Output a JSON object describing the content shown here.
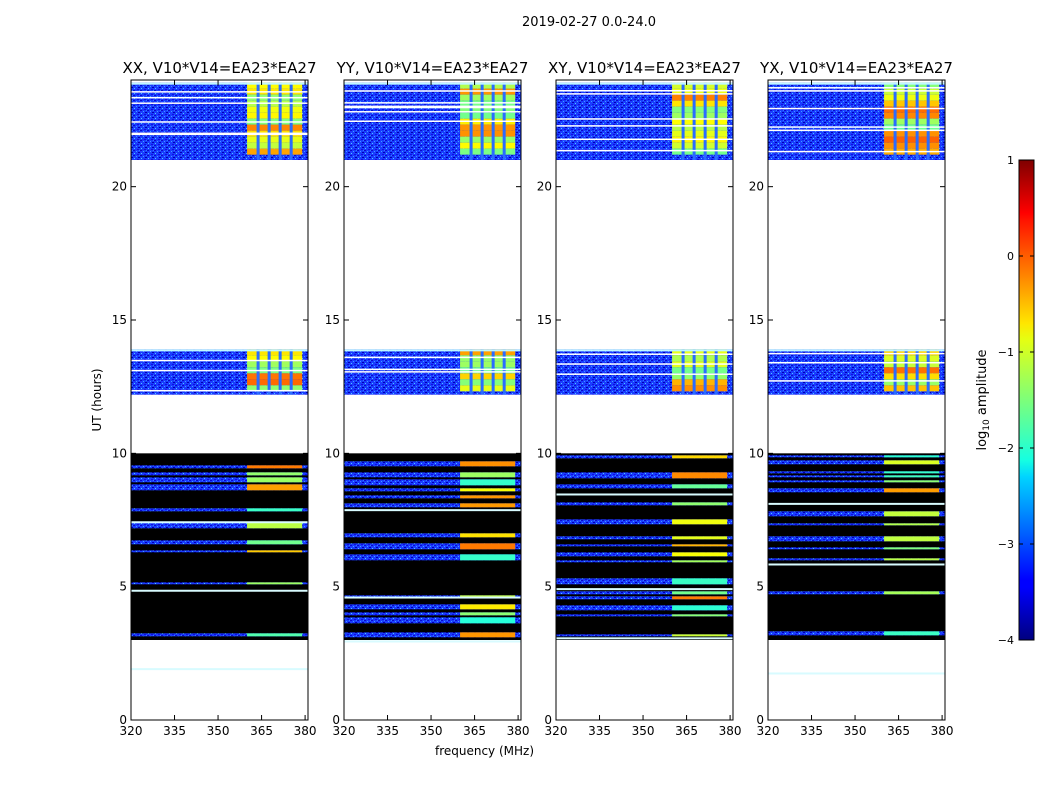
{
  "figure_title": "2019-02-27 0.0-24.0",
  "colormap": "jet",
  "colorbar": {
    "label_prefix": "log",
    "label_subscript": "10",
    "label_suffix": " amplitude",
    "min": -4,
    "max": 1,
    "ticks": [
      -4,
      -3,
      -2,
      -1,
      0,
      1
    ],
    "tick_labels": [
      "−4",
      "−3",
      "−2",
      "−1",
      "0",
      "1"
    ]
  },
  "chart_data": [
    {
      "type": "heatmap",
      "title": "XX, V10*V14=EA23*EA27",
      "ylabel": "UT (hours)",
      "xlabel": "",
      "xlim": [
        320,
        381
      ],
      "ylim": [
        0,
        24
      ],
      "xticks": [
        320,
        335,
        350,
        365,
        380
      ],
      "yticks": [
        0,
        5,
        10,
        15,
        20
      ],
      "time_blocks": [
        {
          "start": 21.0,
          "end": 23.9,
          "type": "data"
        },
        {
          "start": 12.2,
          "end": 13.9,
          "type": "data"
        },
        {
          "start": 3.0,
          "end": 10.0,
          "type": "flagged_mixed"
        }
      ],
      "rfi_band_mhz": [
        360,
        379
      ],
      "background_log10_amplitude": -3.3,
      "rfi_log10_amplitude": -1.0
    },
    {
      "type": "heatmap",
      "title": "YY, V10*V14=EA23*EA27",
      "ylabel": "",
      "xlabel": "frequency (MHz)",
      "xlim": [
        320,
        381
      ],
      "ylim": [
        0,
        24
      ],
      "xticks": [
        320,
        335,
        350,
        365,
        380
      ],
      "yticks": [
        0,
        5,
        10,
        15,
        20
      ],
      "time_blocks": [
        {
          "start": 21.0,
          "end": 23.9,
          "type": "data"
        },
        {
          "start": 12.2,
          "end": 13.9,
          "type": "data"
        },
        {
          "start": 3.0,
          "end": 10.0,
          "type": "flagged_mixed"
        }
      ],
      "rfi_band_mhz": [
        360,
        379
      ],
      "background_log10_amplitude": -3.3,
      "rfi_log10_amplitude": -1.0
    },
    {
      "type": "heatmap",
      "title": "XY, V10*V14=EA23*EA27",
      "ylabel": "",
      "xlabel": "",
      "xlim": [
        320,
        381
      ],
      "ylim": [
        0,
        24
      ],
      "xticks": [
        320,
        335,
        350,
        365,
        380
      ],
      "yticks": [
        0,
        5,
        10,
        15,
        20
      ],
      "time_blocks": [
        {
          "start": 21.0,
          "end": 23.9,
          "type": "data"
        },
        {
          "start": 12.2,
          "end": 13.9,
          "type": "data"
        },
        {
          "start": 3.0,
          "end": 10.0,
          "type": "flagged_mixed"
        }
      ],
      "rfi_band_mhz": [
        360,
        379
      ],
      "background_log10_amplitude": -3.3,
      "rfi_log10_amplitude": -1.0
    },
    {
      "type": "heatmap",
      "title": "YX, V10*V14=EA23*EA27",
      "ylabel": "",
      "xlabel": "",
      "xlim": [
        320,
        381
      ],
      "ylim": [
        0,
        24
      ],
      "xticks": [
        320,
        335,
        350,
        365,
        380
      ],
      "yticks": [
        0,
        5,
        10,
        15,
        20
      ],
      "time_blocks": [
        {
          "start": 21.0,
          "end": 23.9,
          "type": "data"
        },
        {
          "start": 12.2,
          "end": 13.9,
          "type": "data"
        },
        {
          "start": 3.0,
          "end": 10.0,
          "type": "flagged_mixed"
        }
      ],
      "rfi_band_mhz": [
        360,
        379
      ],
      "background_log10_amplitude": -3.3,
      "rfi_log10_amplitude": -1.0
    }
  ]
}
